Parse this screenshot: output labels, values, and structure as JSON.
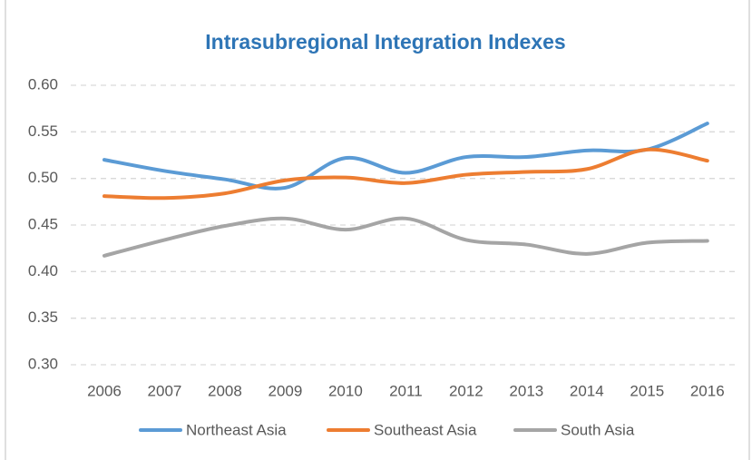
{
  "chart_data": {
    "type": "line",
    "title": "Intrasubregional Integration Indexes",
    "categories": [
      "2006",
      "2007",
      "2008",
      "2009",
      "2010",
      "2011",
      "2012",
      "2013",
      "2014",
      "2015",
      "2016"
    ],
    "series": [
      {
        "name": "Northeast Asia",
        "color": "#5b9bd5",
        "values": [
          0.52,
          0.508,
          0.499,
          0.49,
          0.522,
          0.506,
          0.523,
          0.523,
          0.53,
          0.531,
          0.559
        ]
      },
      {
        "name": "Southeast Asia",
        "color": "#ed7d31",
        "values": [
          0.481,
          0.479,
          0.484,
          0.498,
          0.501,
          0.495,
          0.504,
          0.507,
          0.51,
          0.531,
          0.519
        ]
      },
      {
        "name": "South Asia",
        "color": "#a5a5a5",
        "values": [
          0.417,
          0.434,
          0.449,
          0.457,
          0.445,
          0.457,
          0.434,
          0.429,
          0.419,
          0.431,
          0.433
        ]
      }
    ],
    "ylim": [
      0.3,
      0.6
    ],
    "yticks": [
      {
        "value": 0.3,
        "label": "0.30"
      },
      0.35,
      {
        "value": 0.4,
        "label": "0.40"
      },
      0.45,
      {
        "value": 0.5,
        "label": "0.50"
      },
      0.55,
      {
        "value": 0.6,
        "label": "0.60"
      }
    ],
    "grid": true,
    "legend": "bottom"
  }
}
